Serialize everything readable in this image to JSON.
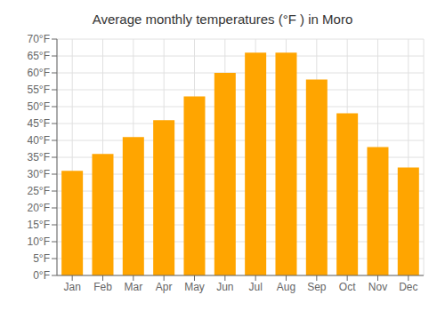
{
  "chart_data": {
    "type": "bar",
    "title": "Average monthly temperatures (°F ) in Moro",
    "categories": [
      "Jan",
      "Feb",
      "Mar",
      "Apr",
      "May",
      "Jun",
      "Jul",
      "Aug",
      "Sep",
      "Oct",
      "Nov",
      "Dec"
    ],
    "values": [
      31,
      36,
      41,
      46,
      53,
      60,
      66,
      66,
      58,
      48,
      38,
      32
    ],
    "color": "#FFA500",
    "ylim": [
      0,
      70
    ],
    "yticks": [
      {
        "value": 0,
        "label": "0°F"
      },
      {
        "value": 5,
        "label": "5°F"
      },
      {
        "value": 10,
        "label": "10°F"
      },
      {
        "value": 15,
        "label": "15°F"
      },
      {
        "value": 20,
        "label": "20°F"
      },
      {
        "value": 25,
        "label": "25°F"
      },
      {
        "value": 30,
        "label": "30°F"
      },
      {
        "value": 35,
        "label": "35°F"
      },
      {
        "value": 40,
        "label": "40°F"
      },
      {
        "value": 45,
        "label": "45°F"
      },
      {
        "value": 50,
        "label": "50°F"
      },
      {
        "value": 55,
        "label": "55°F"
      },
      {
        "value": 60,
        "label": "60°F"
      },
      {
        "value": 65,
        "label": "65°F"
      },
      {
        "value": 70,
        "label": "70°F"
      }
    ],
    "grid": true
  }
}
